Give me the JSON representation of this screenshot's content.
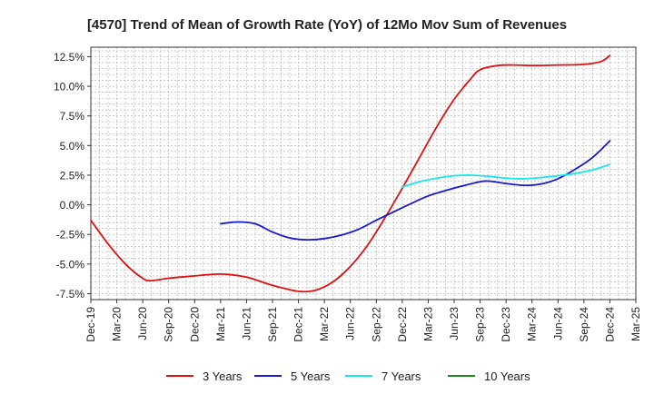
{
  "chart_data": {
    "type": "line",
    "title": "[4570]  Trend of Mean of Growth Rate (YoY) of 12Mo Mov Sum of Revenues",
    "xlabel": "",
    "ylabel": "",
    "x_ticks": [
      "Dec-19",
      "Mar-20",
      "Jun-20",
      "Sep-20",
      "Dec-20",
      "Mar-21",
      "Jun-21",
      "Sep-21",
      "Dec-21",
      "Mar-22",
      "Jun-22",
      "Sep-22",
      "Dec-22",
      "Mar-23",
      "Jun-23",
      "Sep-23",
      "Dec-23",
      "Mar-24",
      "Jun-24",
      "Sep-24",
      "Dec-24",
      "Mar-25"
    ],
    "xlim": [
      0,
      63
    ],
    "y_ticks": [
      -7.5,
      -5.0,
      -2.5,
      0.0,
      2.5,
      5.0,
      7.5,
      10.0,
      12.5
    ],
    "y_tick_labels": [
      "-7.5%",
      "-5.0%",
      "-2.5%",
      "0.0%",
      "2.5%",
      "5.0%",
      "7.5%",
      "10.0%",
      "12.5%"
    ],
    "ylim": [
      -8.0,
      13.3
    ],
    "grid": true,
    "legend_position": "bottom",
    "series": [
      {
        "name": "3 Years",
        "color": "#e01010",
        "points": [
          [
            0,
            -1.3
          ],
          [
            2,
            -3.3
          ],
          [
            4,
            -5.0
          ],
          [
            6,
            -6.2
          ],
          [
            7,
            -6.4
          ],
          [
            9,
            -6.2
          ],
          [
            12,
            -6.0
          ],
          [
            15,
            -5.85
          ],
          [
            18,
            -6.1
          ],
          [
            21,
            -6.8
          ],
          [
            24,
            -7.3
          ],
          [
            26,
            -7.2
          ],
          [
            28,
            -6.5
          ],
          [
            30,
            -5.2
          ],
          [
            32,
            -3.4
          ],
          [
            34,
            -1.1
          ],
          [
            36,
            1.4
          ],
          [
            38,
            4.0
          ],
          [
            40,
            6.6
          ],
          [
            42,
            8.9
          ],
          [
            44,
            10.7
          ],
          [
            45,
            11.4
          ],
          [
            47,
            11.75
          ],
          [
            49,
            11.8
          ],
          [
            51,
            11.75
          ],
          [
            54,
            11.8
          ],
          [
            57,
            11.85
          ],
          [
            59,
            12.1
          ],
          [
            60,
            12.6
          ]
        ]
      },
      {
        "name": "5 Years",
        "color": "#1818cc",
        "points": [
          [
            15,
            -1.6
          ],
          [
            17,
            -1.45
          ],
          [
            19,
            -1.6
          ],
          [
            21,
            -2.3
          ],
          [
            23,
            -2.8
          ],
          [
            25,
            -2.95
          ],
          [
            27,
            -2.85
          ],
          [
            29,
            -2.55
          ],
          [
            31,
            -2.05
          ],
          [
            33,
            -1.3
          ],
          [
            35,
            -0.6
          ],
          [
            37,
            0.1
          ],
          [
            39,
            0.75
          ],
          [
            41,
            1.2
          ],
          [
            43,
            1.6
          ],
          [
            45,
            1.95
          ],
          [
            46,
            2.0
          ],
          [
            48,
            1.8
          ],
          [
            50,
            1.65
          ],
          [
            52,
            1.75
          ],
          [
            54,
            2.2
          ],
          [
            56,
            3.0
          ],
          [
            58,
            4.0
          ],
          [
            60,
            5.4
          ]
        ]
      },
      {
        "name": "7 Years",
        "color": "#18e8e8",
        "points": [
          [
            36,
            1.5
          ],
          [
            38,
            1.95
          ],
          [
            40,
            2.25
          ],
          [
            42,
            2.45
          ],
          [
            44,
            2.5
          ],
          [
            46,
            2.4
          ],
          [
            48,
            2.25
          ],
          [
            50,
            2.2
          ],
          [
            52,
            2.3
          ],
          [
            54,
            2.45
          ],
          [
            56,
            2.65
          ],
          [
            58,
            2.95
          ],
          [
            60,
            3.4
          ]
        ]
      },
      {
        "name": "10 Years",
        "color": "#1a8a1a",
        "points": []
      }
    ]
  }
}
